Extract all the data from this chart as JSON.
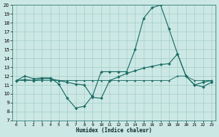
{
  "xlabel": "Humidex (Indice chaleur)",
  "background_color": "#cce8e4",
  "grid_color": "#a0cbc7",
  "line_color": "#1e6e68",
  "xlim_min": -0.5,
  "xlim_max": 23.5,
  "ylim_min": 7,
  "ylim_max": 20,
  "xticks": [
    0,
    1,
    2,
    3,
    4,
    5,
    6,
    7,
    8,
    9,
    10,
    11,
    12,
    13,
    14,
    15,
    16,
    17,
    18,
    19,
    20,
    21,
    22,
    23
  ],
  "yticks": [
    7,
    8,
    9,
    10,
    11,
    12,
    13,
    14,
    15,
    16,
    17,
    18,
    19,
    20
  ],
  "line1_x": [
    0,
    1,
    2,
    3,
    4,
    5,
    6,
    7,
    8,
    9,
    10,
    11,
    12,
    13,
    14,
    15,
    16,
    17,
    18,
    19,
    20,
    21,
    22,
    23
  ],
  "line1_y": [
    11.5,
    12.0,
    11.7,
    11.8,
    11.8,
    11.1,
    9.5,
    8.4,
    8.6,
    9.8,
    12.5,
    12.5,
    12.5,
    12.5,
    15.0,
    18.5,
    19.7,
    20.0,
    17.3,
    14.5,
    12.0,
    11.0,
    11.3,
    11.5
  ],
  "line2_x": [
    0,
    1,
    2,
    3,
    4,
    5,
    6,
    7,
    8,
    9,
    10,
    11,
    12,
    13,
    14,
    15,
    16,
    17,
    18,
    19,
    20,
    21,
    22,
    23
  ],
  "line2_y": [
    11.5,
    11.6,
    11.5,
    11.7,
    11.7,
    11.5,
    11.3,
    11.1,
    11.0,
    9.6,
    9.5,
    11.5,
    11.9,
    12.3,
    12.6,
    12.9,
    13.1,
    13.3,
    13.4,
    14.5,
    12.0,
    11.0,
    10.8,
    11.3
  ],
  "line3_x": [
    0,
    1,
    2,
    3,
    4,
    5,
    6,
    7,
    8,
    9,
    10,
    11,
    12,
    13,
    14,
    15,
    16,
    17,
    18,
    19,
    20,
    21,
    22,
    23
  ],
  "line3_y": [
    11.5,
    11.5,
    11.5,
    11.5,
    11.5,
    11.5,
    11.5,
    11.5,
    11.5,
    11.5,
    11.5,
    11.5,
    11.5,
    11.5,
    11.5,
    11.5,
    11.5,
    11.5,
    11.5,
    12.0,
    12.0,
    11.5,
    11.5,
    11.5
  ]
}
